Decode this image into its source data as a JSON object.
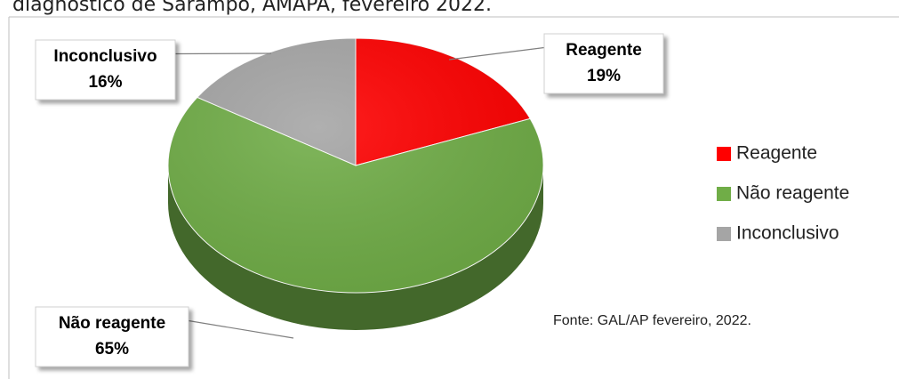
{
  "chart_data": {
    "type": "pie",
    "title": "diagnóstico de Sarampo, AMAPÁ, fevereiro 2022.",
    "categories": [
      "Reagente",
      "Não reagente",
      "Inconclusivo"
    ],
    "values": [
      19,
      65,
      16
    ],
    "value_labels": [
      "19%",
      "65%",
      "16%"
    ],
    "colors": [
      "#ff0000",
      "#70ad47",
      "#a5a5a5"
    ],
    "legend": "right",
    "annotation": "Fonte: GAL/AP fevereiro, 2022."
  }
}
